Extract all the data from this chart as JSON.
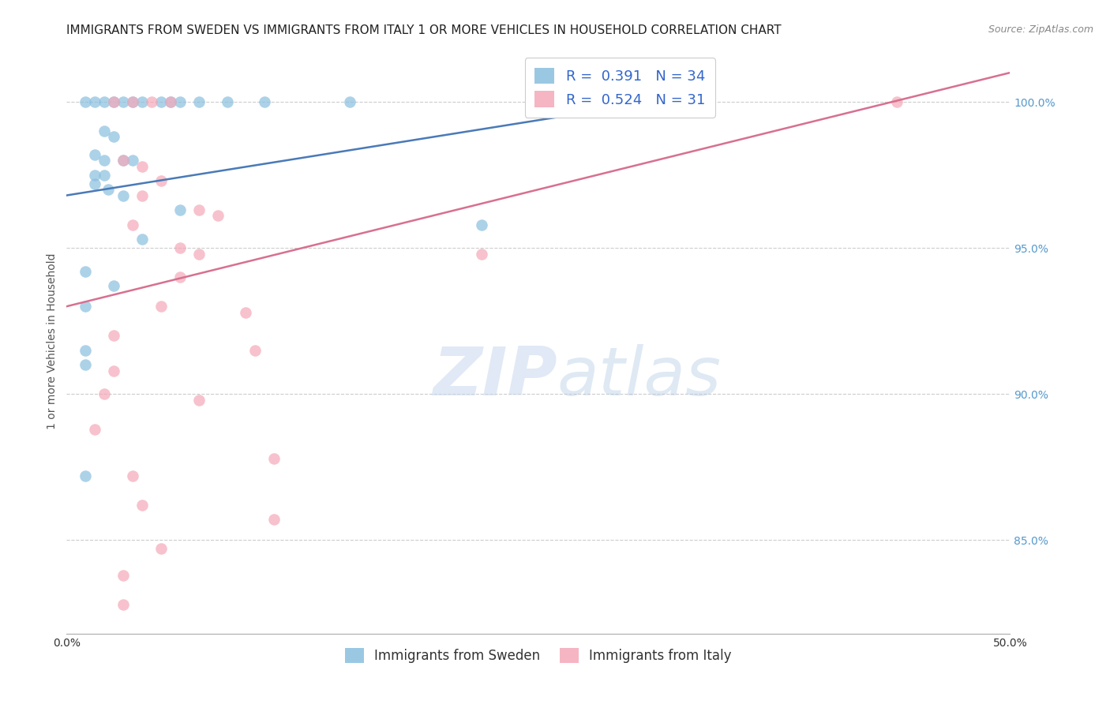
{
  "title": "IMMIGRANTS FROM SWEDEN VS IMMIGRANTS FROM ITALY 1 OR MORE VEHICLES IN HOUSEHOLD CORRELATION CHART",
  "source": "Source: ZipAtlas.com",
  "ylabel": "1 or more Vehicles in Household",
  "xlim": [
    0.0,
    0.5
  ],
  "ylim": [
    0.818,
    1.018
  ],
  "sweden_color": "#89bfdf",
  "italy_color": "#f4a8b8",
  "sweden_scatter": [
    [
      0.01,
      1.0
    ],
    [
      0.015,
      1.0
    ],
    [
      0.02,
      1.0
    ],
    [
      0.025,
      1.0
    ],
    [
      0.03,
      1.0
    ],
    [
      0.035,
      1.0
    ],
    [
      0.04,
      1.0
    ],
    [
      0.05,
      1.0
    ],
    [
      0.055,
      1.0
    ],
    [
      0.06,
      1.0
    ],
    [
      0.07,
      1.0
    ],
    [
      0.085,
      1.0
    ],
    [
      0.105,
      1.0
    ],
    [
      0.15,
      1.0
    ],
    [
      0.02,
      0.99
    ],
    [
      0.025,
      0.988
    ],
    [
      0.015,
      0.982
    ],
    [
      0.02,
      0.98
    ],
    [
      0.03,
      0.98
    ],
    [
      0.035,
      0.98
    ],
    [
      0.015,
      0.975
    ],
    [
      0.02,
      0.975
    ],
    [
      0.015,
      0.972
    ],
    [
      0.022,
      0.97
    ],
    [
      0.03,
      0.968
    ],
    [
      0.06,
      0.963
    ],
    [
      0.04,
      0.953
    ],
    [
      0.01,
      0.942
    ],
    [
      0.025,
      0.937
    ],
    [
      0.01,
      0.93
    ],
    [
      0.01,
      0.915
    ],
    [
      0.01,
      0.91
    ],
    [
      0.01,
      0.872
    ],
    [
      0.22,
      0.958
    ]
  ],
  "italy_scatter": [
    [
      0.025,
      1.0
    ],
    [
      0.035,
      1.0
    ],
    [
      0.045,
      1.0
    ],
    [
      0.055,
      1.0
    ],
    [
      0.44,
      1.0
    ],
    [
      0.03,
      0.98
    ],
    [
      0.04,
      0.978
    ],
    [
      0.05,
      0.973
    ],
    [
      0.04,
      0.968
    ],
    [
      0.07,
      0.963
    ],
    [
      0.08,
      0.961
    ],
    [
      0.035,
      0.958
    ],
    [
      0.06,
      0.95
    ],
    [
      0.07,
      0.948
    ],
    [
      0.06,
      0.94
    ],
    [
      0.05,
      0.93
    ],
    [
      0.095,
      0.928
    ],
    [
      0.025,
      0.92
    ],
    [
      0.1,
      0.915
    ],
    [
      0.025,
      0.908
    ],
    [
      0.02,
      0.9
    ],
    [
      0.07,
      0.898
    ],
    [
      0.22,
      0.948
    ],
    [
      0.015,
      0.888
    ],
    [
      0.11,
      0.878
    ],
    [
      0.035,
      0.872
    ],
    [
      0.04,
      0.862
    ],
    [
      0.11,
      0.857
    ],
    [
      0.05,
      0.847
    ],
    [
      0.03,
      0.838
    ],
    [
      0.03,
      0.828
    ]
  ],
  "sweden_line_x": [
    0.0,
    0.34
  ],
  "sweden_line_y": [
    0.968,
    1.003
  ],
  "italy_line_x": [
    0.0,
    0.5
  ],
  "italy_line_y": [
    0.93,
    1.01
  ],
  "ytick_positions": [
    0.85,
    0.9,
    0.95,
    1.0
  ],
  "ytick_labels": [
    "85.0%",
    "90.0%",
    "95.0%",
    "100.0%"
  ],
  "xtick_positions": [
    0.0,
    0.1,
    0.2,
    0.3,
    0.4,
    0.5
  ],
  "xtick_labels": [
    "0.0%",
    "",
    "",
    "",
    "",
    "50.0%"
  ],
  "grid_color": "#cccccc",
  "line_blue": "#4a7ab8",
  "line_pink": "#d87090",
  "tick_color": "#5599cc",
  "watermark_zip": "ZIP",
  "watermark_atlas": "atlas",
  "legend_r1": "R =  0.391   N = 34",
  "legend_r2": "R =  0.524   N = 31"
}
